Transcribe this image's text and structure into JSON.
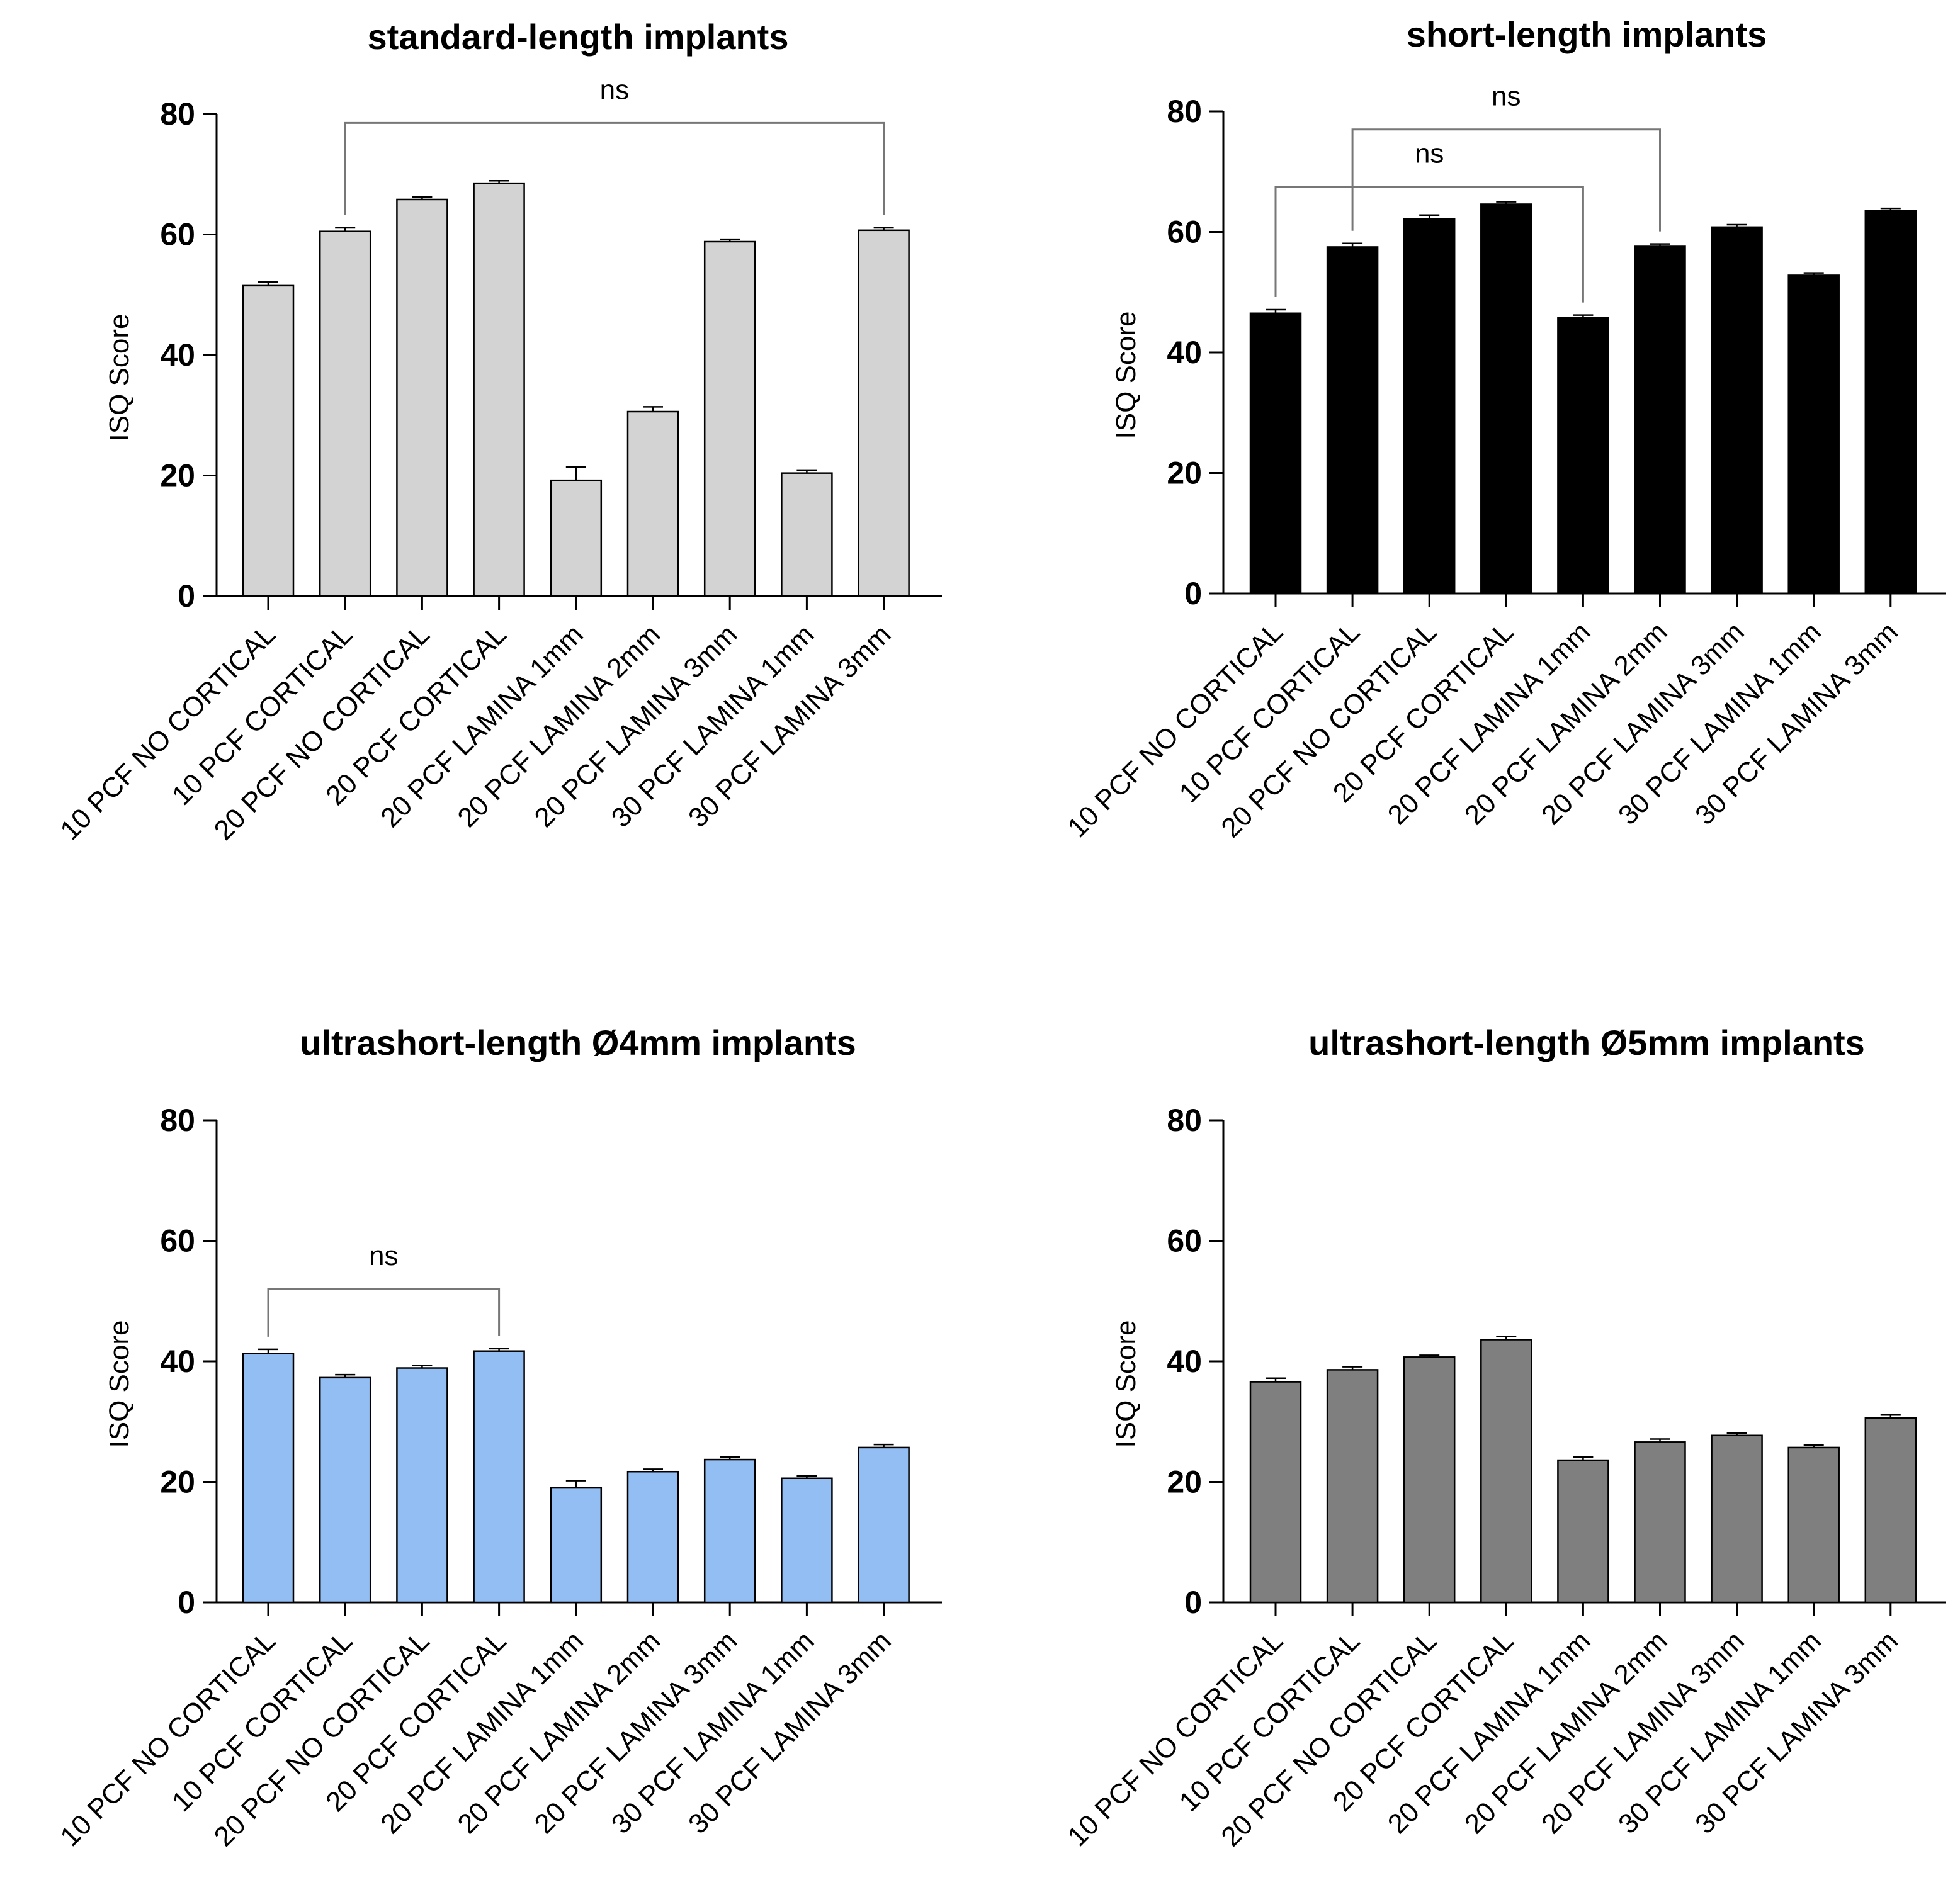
{
  "chart_data": [
    {
      "type": "bar",
      "title": "standard-length implants",
      "ylabel": "ISQ Score",
      "xlabel": "",
      "ylim": [
        0,
        80
      ],
      "yticks": [
        0,
        20,
        40,
        60,
        80
      ],
      "bar_color": "#d3d3d3",
      "categories": [
        "10 PCF NO CORTICAL",
        "10 PCF CORTICAL",
        "20 PCF NO CORTICAL",
        "20 PCF CORTICAL",
        "20 PCF LAMINA 1mm",
        "20 PCF LAMINA 2mm",
        "20 PCF LAMINA 3mm",
        "30 PCF LAMINA 1mm",
        "30 PCF LAMINA 3mm"
      ],
      "values": [
        51.5,
        60.5,
        65.8,
        68.5,
        19.2,
        30.6,
        58.8,
        20.4,
        60.7
      ],
      "errors": [
        0.6,
        0.6,
        0.4,
        0.4,
        2.2,
        0.8,
        0.4,
        0.5,
        0.4
      ],
      "annotations": [
        {
          "label": "ns",
          "from": 1,
          "to": 8,
          "level": 78.5
        }
      ]
    },
    {
      "type": "bar",
      "title": "short-length implants",
      "ylabel": "ISQ Score",
      "xlabel": "",
      "ylim": [
        0,
        80
      ],
      "yticks": [
        0,
        20,
        40,
        60,
        80
      ],
      "bar_color": "#000000",
      "categories": [
        "10 PCF NO CORTICAL",
        "10 PCF CORTICAL",
        "20 PCF NO CORTICAL",
        "20 PCF CORTICAL",
        "20 PCF LAMINA 1mm",
        "20 PCF LAMINA 2mm",
        "20 PCF LAMINA 3mm",
        "30 PCF LAMINA 1mm",
        "30 PCF LAMINA 3mm"
      ],
      "values": [
        46.5,
        57.5,
        62.2,
        64.6,
        45.8,
        57.6,
        60.8,
        52.8,
        63.5
      ],
      "errors": [
        0.6,
        0.6,
        0.6,
        0.4,
        0.4,
        0.4,
        0.4,
        0.4,
        0.4
      ],
      "annotations": [
        {
          "label": "ns",
          "from": 1,
          "to": 5,
          "level": 77.0
        },
        {
          "label": "ns",
          "from": 0,
          "to": 4,
          "level": 67.5
        }
      ]
    },
    {
      "type": "bar",
      "title": "ultrashort-length Ø4mm implants",
      "ylabel": "ISQ Score",
      "xlabel": "",
      "ylim": [
        0,
        80
      ],
      "yticks": [
        0,
        20,
        40,
        60,
        80
      ],
      "bar_color": "#93bef4",
      "categories": [
        "10 PCF NO CORTICAL",
        "10 PCF CORTICAL",
        "20 PCF NO CORTICAL",
        "20 PCF CORTICAL",
        "20 PCF LAMINA 1mm",
        "20 PCF LAMINA 2mm",
        "20 PCF LAMINA 3mm",
        "30 PCF LAMINA 1mm",
        "30 PCF LAMINA 3mm"
      ],
      "values": [
        41.3,
        37.3,
        38.9,
        41.7,
        19.0,
        21.7,
        23.7,
        20.6,
        25.7
      ],
      "errors": [
        0.7,
        0.5,
        0.4,
        0.4,
        1.2,
        0.4,
        0.4,
        0.4,
        0.5
      ],
      "annotations": [
        {
          "label": "ns",
          "from": 0,
          "to": 3,
          "level": 52.0
        }
      ]
    },
    {
      "type": "bar",
      "title": "ultrashort-length Ø5mm implants",
      "ylabel": "ISQ Score",
      "xlabel": "",
      "ylim": [
        0,
        80
      ],
      "yticks": [
        0,
        20,
        40,
        60,
        80
      ],
      "bar_color": "#7f7f7f",
      "categories": [
        "10 PCF NO CORTICAL",
        "10 PCF CORTICAL",
        "20 PCF NO CORTICAL",
        "20 PCF CORTICAL",
        "20 PCF LAMINA 1mm",
        "20 PCF LAMINA 2mm",
        "20 PCF LAMINA 3mm",
        "30 PCF LAMINA 1mm",
        "30 PCF LAMINA 3mm"
      ],
      "values": [
        36.6,
        38.6,
        40.7,
        43.6,
        23.6,
        26.6,
        27.7,
        25.7,
        30.6
      ],
      "errors": [
        0.6,
        0.5,
        0.3,
        0.5,
        0.5,
        0.5,
        0.4,
        0.4,
        0.5
      ],
      "annotations": []
    }
  ]
}
